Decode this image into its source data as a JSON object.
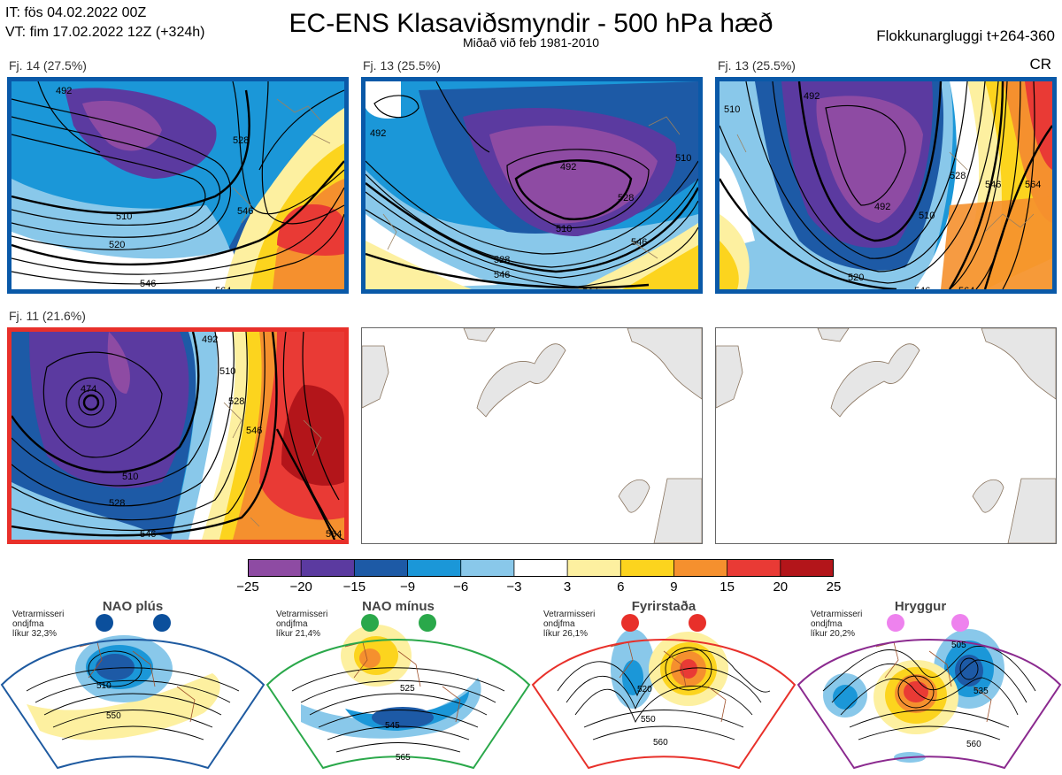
{
  "header": {
    "issue_time": "IT: fös 04.02.2022 00Z",
    "valid_time": "VT: fim 17.02.2022 12Z  (+324h)",
    "title": "EC-ENS Klasaviðsmyndir - 500 hPa hæð",
    "subtitle": "Miðað við feb 1981-2010",
    "window": "Flokkunargluggi t+264-360",
    "cr_label": "CR"
  },
  "clusters": [
    {
      "label": "Fj. 14 (27.5%)",
      "border_color": "#0a59a8",
      "contour_labels": [
        "510",
        "520",
        "528",
        "546",
        "546",
        "564",
        "492"
      ]
    },
    {
      "label": "Fj. 13 (25.5%)",
      "border_color": "#0a59a8",
      "contour_labels": [
        "492",
        "492",
        "510",
        "528",
        "510",
        "528",
        "546",
        "546",
        "564"
      ]
    },
    {
      "label": "Fj. 13 (25.5%)",
      "border_color": "#0a59a8",
      "contour_labels": [
        "492",
        "492",
        "510",
        "510",
        "528",
        "546",
        "564",
        "520",
        "546",
        "564"
      ]
    },
    {
      "label": "Fj. 11 (21.6%)",
      "border_color": "#e8302a",
      "contour_labels": [
        "474",
        "492",
        "510",
        "528",
        "546",
        "510",
        "528",
        "546",
        "564"
      ]
    }
  ],
  "colorbar": {
    "colors": [
      "#8e4ba3",
      "#5b3aa0",
      "#1d5aa6",
      "#1b97d8",
      "#89c8ea",
      "#ffffff",
      "#fdf0a0",
      "#fcd41e",
      "#f5902e",
      "#e93a35",
      "#b3151a"
    ],
    "ticks": [
      "−25",
      "−20",
      "−15",
      "−9",
      "−6",
      "−3",
      "3",
      "6",
      "9",
      "15",
      "20",
      "25"
    ]
  },
  "regimes": [
    {
      "name": "NAO plús",
      "info": [
        "Vetrarmisseri",
        "ondjfma",
        "líkur 32,3%"
      ],
      "dot_color": "#0b4f9c",
      "frame_color": "#1e5aa0",
      "contour_labels": [
        "510",
        "550"
      ]
    },
    {
      "name": "NAO mínus",
      "info": [
        "Vetrarmisseri",
        "ondjfma",
        "líkur 21,4%"
      ],
      "dot_color": "#2aa84a",
      "frame_color": "#2aa84a",
      "contour_labels": [
        "525",
        "545",
        "565"
      ]
    },
    {
      "name": "Fyrirstaða",
      "info": [
        "Vetrarmisseri",
        "ondjfma",
        "líkur 26,1%"
      ],
      "dot_color": "#e8302a",
      "frame_color": "#e8302a",
      "contour_labels": [
        "520",
        "550",
        "560"
      ]
    },
    {
      "name": "Hryggur",
      "info": [
        "Vetrarmisseri",
        "ondjfma",
        "líkur 20,2%"
      ],
      "dot_color": "#ee82ee",
      "frame_color": "#8b2a8f",
      "contour_labels": [
        "505",
        "535",
        "560"
      ]
    }
  ]
}
